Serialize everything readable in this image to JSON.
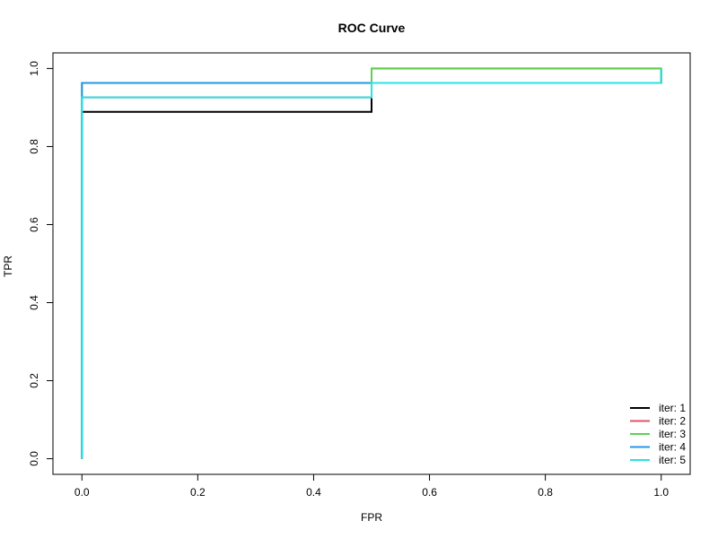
{
  "chart_data": {
    "type": "line",
    "title": "ROC Curve",
    "xlabel": "FPR",
    "ylabel": "TPR",
    "xlim": [
      -0.05,
      1.05
    ],
    "ylim": [
      -0.04,
      1.04
    ],
    "xticks": [
      0.0,
      0.2,
      0.4,
      0.6,
      0.8,
      1.0
    ],
    "xtick_labels": [
      "0.0",
      "0.2",
      "0.4",
      "0.6",
      "0.8",
      "1.0"
    ],
    "yticks": [
      0.0,
      0.2,
      0.4,
      0.6,
      0.8,
      1.0
    ],
    "ytick_labels": [
      "0.0",
      "0.2",
      "0.4",
      "0.6",
      "0.8",
      "1.0"
    ],
    "grid": false,
    "legend_position": "bottom-right",
    "series": [
      {
        "name": "iter: 1",
        "color": "#000000",
        "x": [
          0,
          0,
          0.5,
          0.5,
          1.0,
          1.0
        ],
        "y": [
          0,
          0.889,
          0.889,
          0.963,
          0.963,
          1.0
        ]
      },
      {
        "name": "iter: 2",
        "color": "#DF536B",
        "x": [
          0,
          0,
          0.5,
          0.5,
          1.0,
          1.0
        ],
        "y": [
          0,
          0.926,
          0.926,
          1.0,
          1.0,
          1.0
        ]
      },
      {
        "name": "iter: 3",
        "color": "#61D04F",
        "x": [
          0,
          0,
          0.5,
          0.5,
          1.0,
          1.0
        ],
        "y": [
          0,
          0.963,
          0.963,
          1.0,
          1.0,
          0.963
        ]
      },
      {
        "name": "iter: 4",
        "color": "#2297E6",
        "x": [
          0,
          0,
          0.5,
          0.5,
          1.0,
          1.0
        ],
        "y": [
          0,
          0.963,
          0.963,
          0.963,
          0.963,
          0.963
        ]
      },
      {
        "name": "iter: 5",
        "color": "#28E2E5",
        "x": [
          0,
          0,
          0.5,
          0.5,
          1.0,
          1.0
        ],
        "y": [
          0,
          0.926,
          0.926,
          0.963,
          0.963,
          1.0
        ]
      }
    ]
  }
}
